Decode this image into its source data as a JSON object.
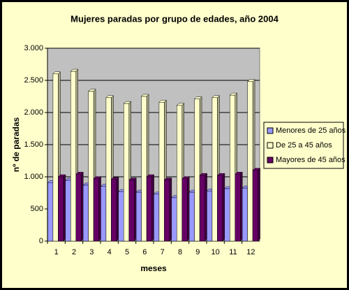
{
  "chart_data": {
    "type": "bar",
    "title": "Mujeres paradas por grupo de edades, año 2004",
    "x_label": "meses",
    "y_label": "nº de paradas",
    "categories": [
      "1",
      "2",
      "3",
      "4",
      "5",
      "6",
      "7",
      "8",
      "9",
      "10",
      "11",
      "12"
    ],
    "series": [
      {
        "name": "Menores de 25 años",
        "color": "#9999ff",
        "values": [
          910,
          945,
          870,
          850,
          770,
          760,
          730,
          675,
          760,
          780,
          815,
          825
        ]
      },
      {
        "name": "De 25 a 45 años",
        "color": "#ffffcc",
        "values": [
          2600,
          2640,
          2330,
          2230,
          2140,
          2250,
          2160,
          2110,
          2210,
          2230,
          2270,
          2480
        ]
      },
      {
        "name": "Mayores de 45 años",
        "color": "#660066",
        "values": [
          1000,
          1040,
          970,
          960,
          950,
          1000,
          950,
          970,
          1020,
          1020,
          1040,
          1100
        ]
      }
    ],
    "ylim": [
      0,
      3000
    ],
    "yticks": [
      0,
      500,
      {
        "value": 1000,
        "label": "1.000"
      },
      {
        "value": 1500,
        "label": "1.500"
      },
      {
        "value": 2000,
        "label": "2.000"
      },
      {
        "value": 2500,
        "label": "2.500"
      },
      {
        "value": 3000,
        "label": "3.000"
      }
    ],
    "grid": true,
    "legend": "right"
  }
}
